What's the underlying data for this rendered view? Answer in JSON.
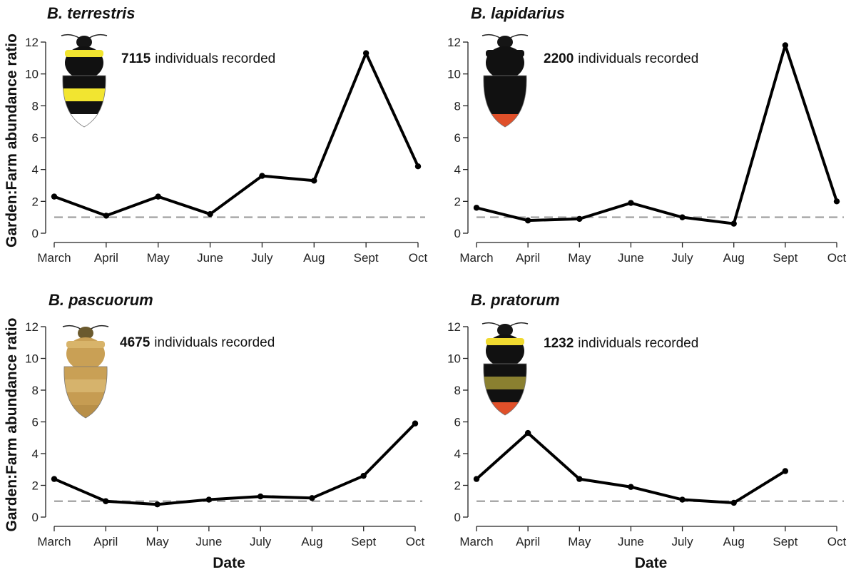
{
  "chart_data": [
    {
      "type": "line",
      "title": "B. terrestris",
      "count": "7115",
      "count_text": "individuals recorded",
      "categories": [
        "March",
        "April",
        "May",
        "June",
        "July",
        "Aug",
        "Sept",
        "Oct"
      ],
      "values": [
        2.3,
        1.1,
        2.3,
        1.2,
        3.6,
        3.3,
        11.3,
        4.2
      ],
      "reference_line": 1,
      "ylim": [
        0,
        12
      ],
      "yticks": [
        0,
        2,
        4,
        6,
        8,
        10,
        12
      ],
      "ylabel": "Garden:Farm abundance ratio",
      "xlabel": "",
      "bee_colors": [
        "#111111",
        "#f2e530",
        "#111111",
        "#f2e530",
        "#111111",
        "#ffffff"
      ]
    },
    {
      "type": "line",
      "title": "B. lapidarius",
      "count": "2200",
      "count_text": "individuals recorded",
      "categories": [
        "March",
        "April",
        "May",
        "June",
        "July",
        "Aug",
        "Sept",
        "Oct"
      ],
      "values": [
        1.6,
        0.8,
        0.9,
        1.9,
        1.0,
        0.6,
        11.8,
        2.0
      ],
      "reference_line": 1,
      "ylim": [
        0,
        12
      ],
      "yticks": [
        0,
        2,
        4,
        6,
        8,
        10,
        12
      ],
      "ylabel": "",
      "xlabel": "",
      "bee_colors": [
        "#111111",
        "#111111",
        "#111111",
        "#111111",
        "#111111",
        "#e0502a"
      ]
    },
    {
      "type": "line",
      "title": "B. pascuorum",
      "count": "4675",
      "count_text": "individuals recorded",
      "categories": [
        "March",
        "April",
        "May",
        "June",
        "July",
        "Aug",
        "Sept",
        "Oct"
      ],
      "values": [
        2.4,
        1.0,
        0.8,
        1.1,
        1.3,
        1.2,
        2.6,
        5.9
      ],
      "reference_line": 1,
      "ylim": [
        0,
        12
      ],
      "yticks": [
        0,
        2,
        4,
        6,
        8,
        10,
        12
      ],
      "ylabel": "Garden:Farm abundance ratio",
      "xlabel": "Date",
      "bee_colors": [
        "#c9a055",
        "#d8b46a",
        "#c9a055",
        "#d6b36c",
        "#c69c52",
        "#b88f48"
      ]
    },
    {
      "type": "line",
      "title": "B. pratorum",
      "count": "1232",
      "count_text": "individuals recorded",
      "categories": [
        "March",
        "April",
        "May",
        "June",
        "July",
        "Aug",
        "Sept",
        "Oct"
      ],
      "values": [
        2.4,
        5.3,
        2.4,
        1.9,
        1.1,
        0.9,
        2.9,
        null
      ],
      "reference_line": 1,
      "ylim": [
        0,
        12
      ],
      "yticks": [
        0,
        2,
        4,
        6,
        8,
        10,
        12
      ],
      "ylabel": "",
      "xlabel": "Date",
      "bee_colors": [
        "#111111",
        "#f0da30",
        "#111111",
        "#8a8030",
        "#111111",
        "#e0502a"
      ]
    }
  ]
}
